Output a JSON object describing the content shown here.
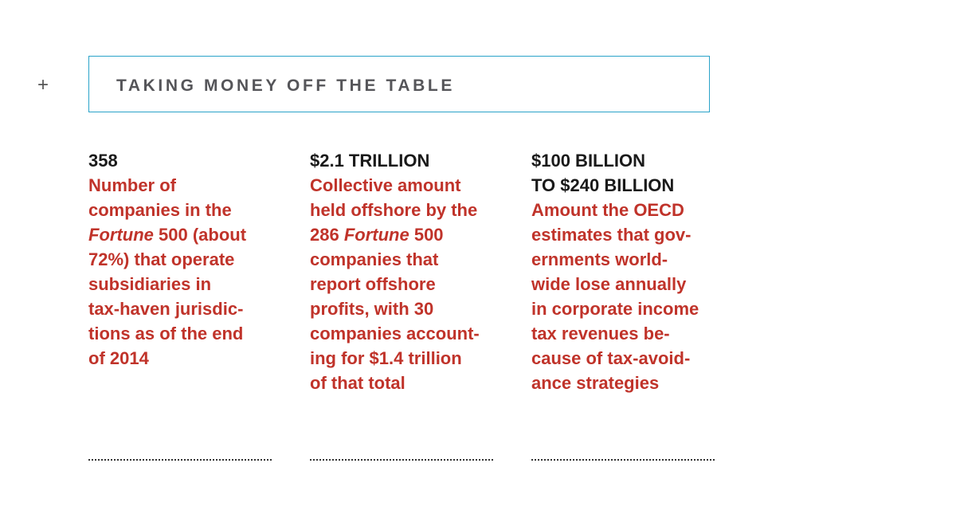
{
  "header": {
    "plus_icon": "+",
    "title": "TAKING MONEY OFF THE TABLE"
  },
  "stats": [
    {
      "value": "358",
      "desc_before": "Number of\ncompanies in the\n",
      "desc_em": "Fortune",
      "desc_after": " 500 (about\n72%) that operate\nsubsidiaries in\ntax-haven jurisdic-\ntions as of the end\nof 2014"
    },
    {
      "value": "$2.1 TRILLION",
      "desc_before": "Collective amount\nheld offshore by the\n286 ",
      "desc_em": "Fortune",
      "desc_after": " 500\ncompanies that\nreport offshore\nprofits, with 30\ncompanies account-\ning for $1.4 trillion\nof that total"
    },
    {
      "value": "$100 BILLION\nTO $240 BILLION",
      "desc_before": "Amount the OECD\nestimates that gov-\nernments world-\nwide lose annually\nin corporate income\ntax revenues be-\ncause of tax-avoid-\nance strategies",
      "desc_em": "",
      "desc_after": ""
    }
  ],
  "colors": {
    "accent_red": "#c0332a",
    "border_blue": "#2aa3c9",
    "title_gray": "#555559"
  }
}
